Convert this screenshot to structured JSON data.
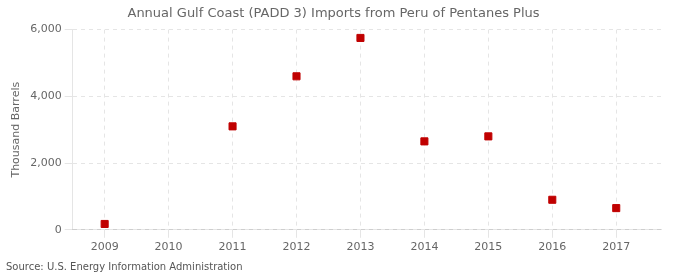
{
  "chart_data": {
    "type": "scatter",
    "title": "Annual Gulf Coast (PADD 3) Imports from Peru of Pentanes Plus",
    "ylabel": "Thousand Barrels",
    "source": "Source: U.S. Energy Information Administration",
    "x": [
      2009,
      2011,
      2012,
      2013,
      2014,
      2015,
      2016,
      2017
    ],
    "values": [
      175,
      3100,
      4600,
      5750,
      2650,
      2800,
      900,
      650
    ],
    "color": "#c00000",
    "marker": "square",
    "xlim": [
      2008.5,
      2017.7
    ],
    "xticks": [
      2009,
      2010,
      2011,
      2012,
      2013,
      2014,
      2015,
      2016,
      2017
    ],
    "ylim": [
      0,
      6000
    ],
    "yticks": [
      0,
      {
        "value": 2000,
        "label": "2,000"
      },
      {
        "value": 4000,
        "label": "4,000"
      },
      {
        "value": 6000,
        "label": "6,000"
      }
    ],
    "grid": true
  }
}
